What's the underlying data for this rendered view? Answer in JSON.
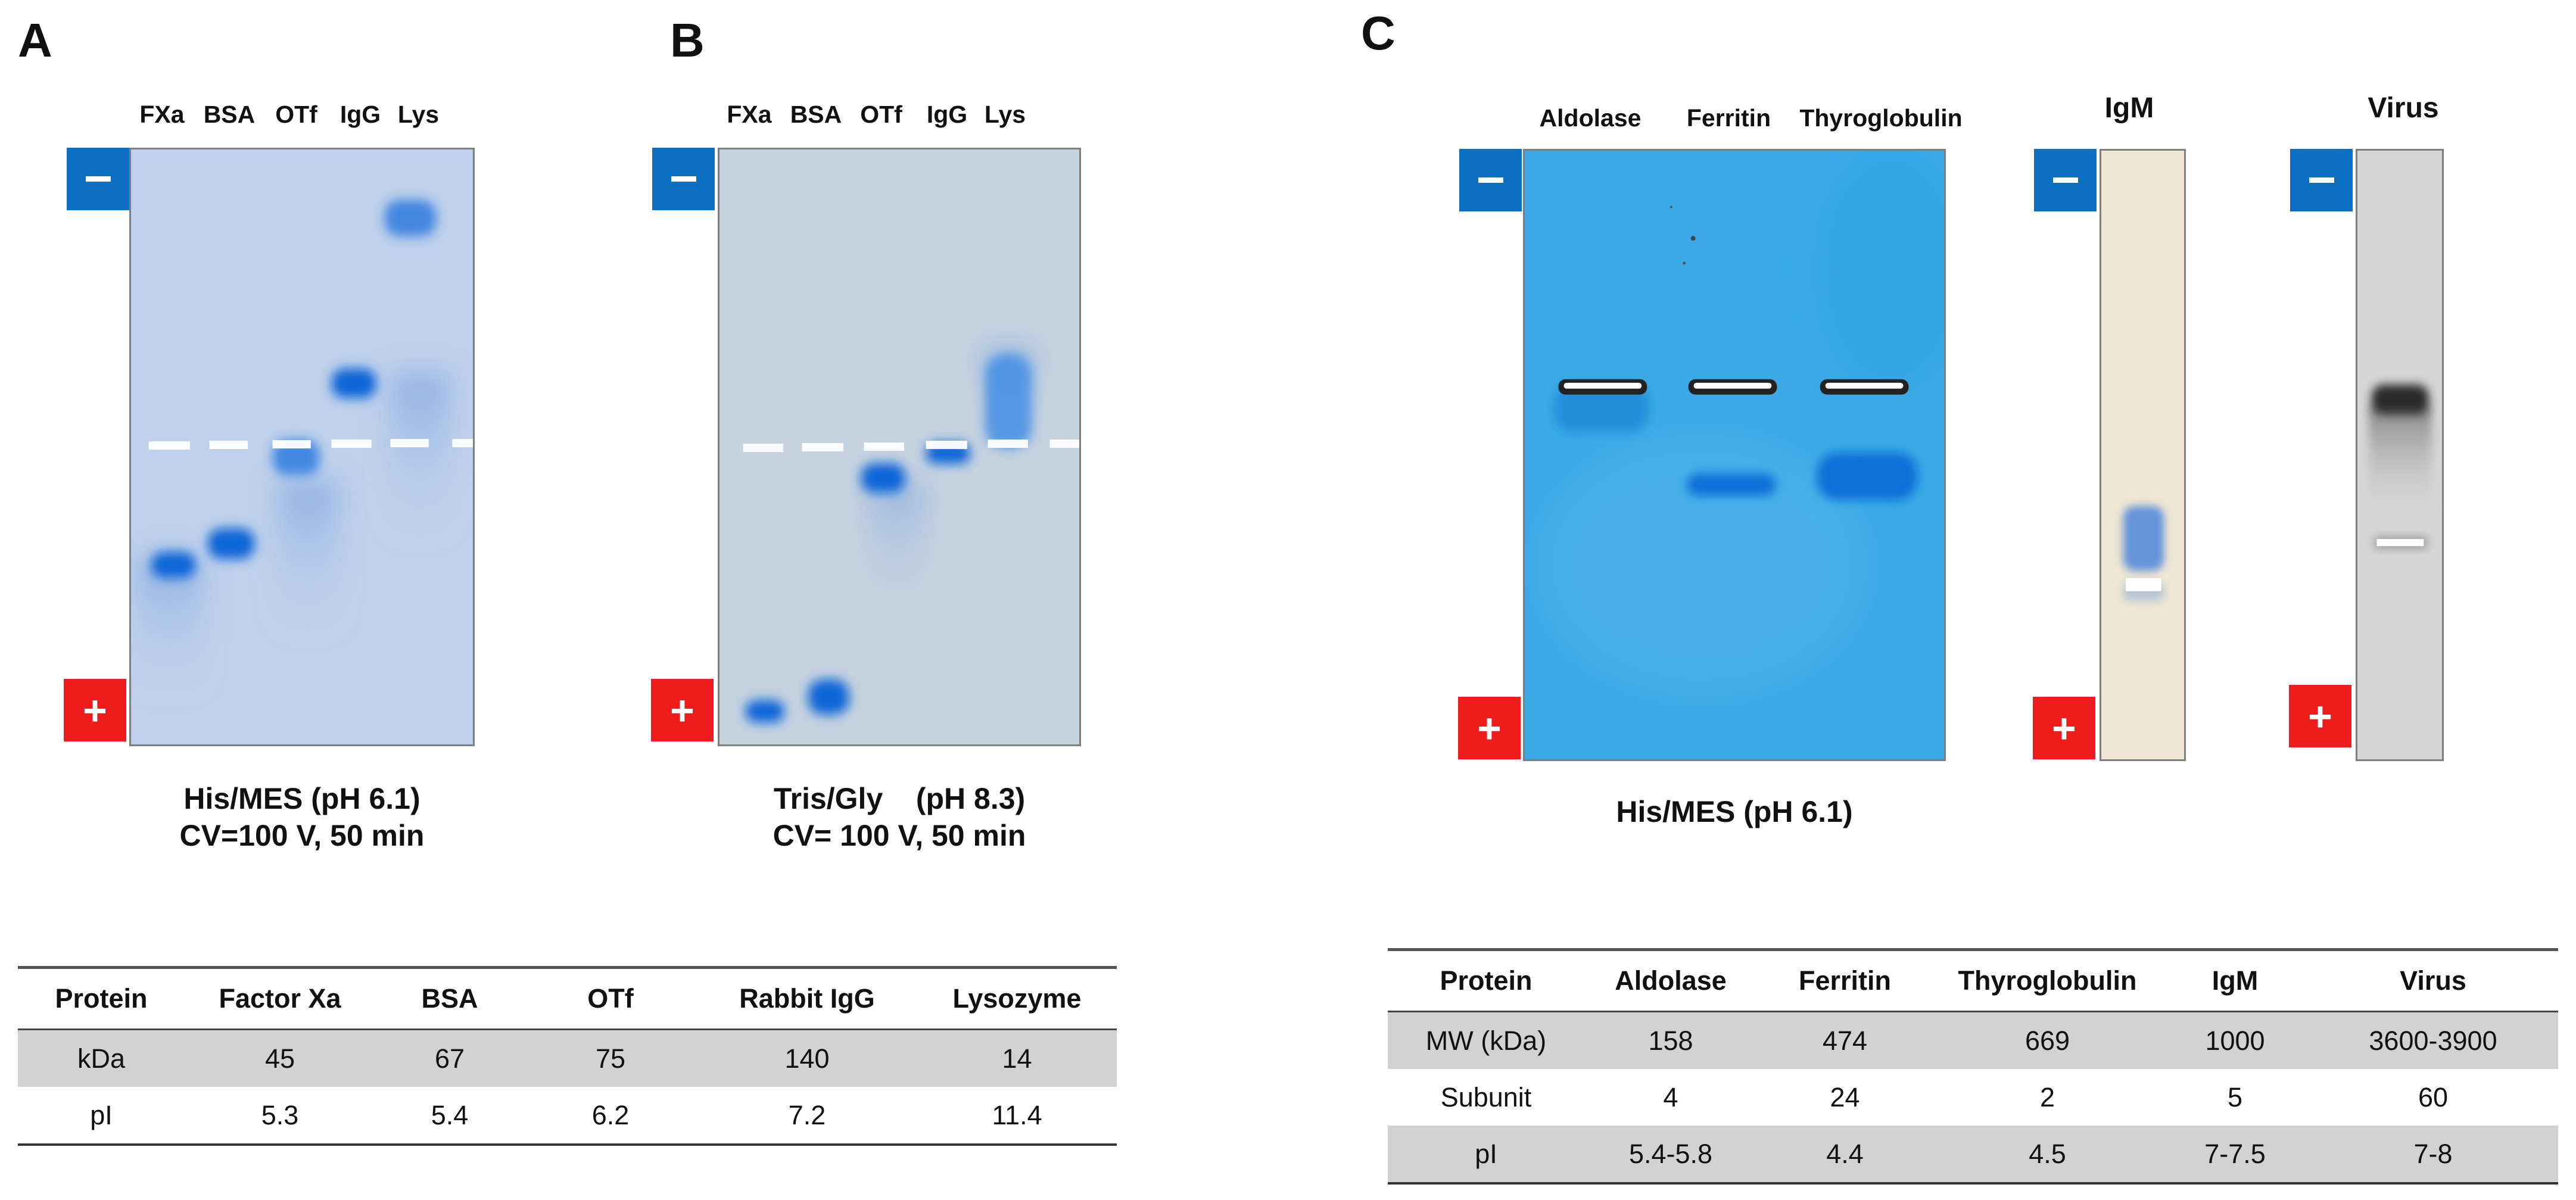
{
  "panels": {
    "a": {
      "letter": "A",
      "lanes": [
        "FXa",
        "BSA",
        "OTf",
        "IgG",
        "Lys"
      ],
      "electrode_minus": "−",
      "electrode_plus": "+",
      "caption_line1": "His/MES (pH 6.1)",
      "caption_line2": "CV=100 V, 50 min"
    },
    "b": {
      "letter": "B",
      "lanes": [
        "FXa",
        "BSA",
        "OTf",
        "IgG",
        "Lys"
      ],
      "electrode_minus": "−",
      "electrode_plus": "+",
      "caption_line1": "Tris/Gly    (pH 8.3)",
      "caption_line2": "CV= 100 V, 50 min"
    },
    "c": {
      "letter": "C",
      "lanes": [
        "Aldolase",
        "Ferritin",
        "Thyroglobulin"
      ],
      "igm_title": "IgM",
      "virus_title": "Virus",
      "electrode_minus": "−",
      "electrode_plus": "+",
      "caption": "His/MES (pH 6.1)"
    }
  },
  "table_left": {
    "headers": [
      "Protein",
      "Factor Xa",
      "BSA",
      "OTf",
      "Rabbit IgG",
      "Lysozyme"
    ],
    "rows": [
      [
        "kDa",
        "45",
        "67",
        "75",
        "140",
        "14"
      ],
      [
        "pI",
        "5.3",
        "5.4",
        "6.2",
        "7.2",
        "11.4"
      ]
    ]
  },
  "table_right": {
    "headers": [
      "Protein",
      "Aldolase",
      "Ferritin",
      "Thyroglobulin",
      "IgM",
      "Virus"
    ],
    "rows": [
      [
        "MW (kDa)",
        "158",
        "474",
        "669",
        "1000",
        "3600-3900"
      ],
      [
        "Subunit",
        "4",
        "24",
        "2",
        "5",
        "60"
      ],
      [
        "pI",
        "5.4-5.8",
        "4.4",
        "4.5",
        "7-7.5",
        "7-8"
      ]
    ]
  },
  "colors": {
    "electrode_negative": "#0a6fc0",
    "electrode_positive": "#ee1c1c",
    "gel_a": "#b9cdea",
    "gel_b": "#c5d2e0",
    "gel_c": "#3aa9e6",
    "gel_igm": "#efe6d3",
    "gel_virus": "#d6d6d6",
    "band": "#0a66d8"
  }
}
